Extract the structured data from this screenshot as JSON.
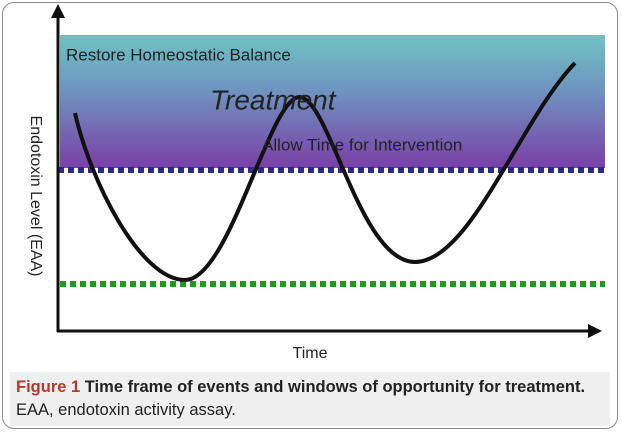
{
  "figure": {
    "labels": {
      "top": "Restore Homeostatic Balance",
      "center": "Treatment",
      "bottom": "Allow Time for Intervention"
    },
    "y_axis_label": "Endotoxin Level (EAA)",
    "x_axis_label": "Time"
  },
  "caption": {
    "label": "Figure 1",
    "title": "Time frame of events and windows of opportunity for treatment.",
    "text": "EAA, endotoxin activity assay."
  }
}
